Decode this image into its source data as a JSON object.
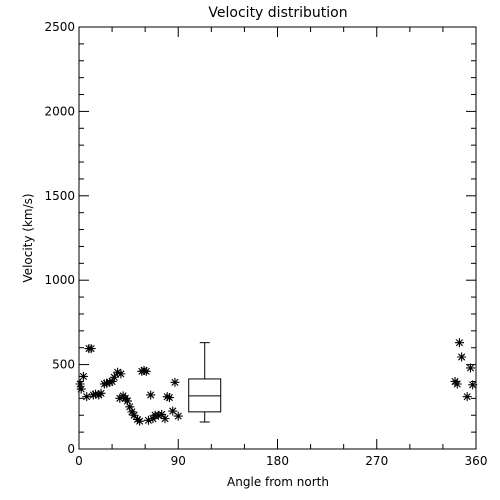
{
  "chart_data": {
    "type": "scatter",
    "title": "Velocity distribution",
    "xlabel": "Angle from north",
    "ylabel": "Velocity (km/s)",
    "xlim": [
      0,
      360
    ],
    "ylim": [
      0,
      2500
    ],
    "xticks": [
      0,
      90,
      180,
      270,
      360
    ],
    "yticks": [
      0,
      500,
      1000,
      1500,
      2000,
      2500
    ],
    "grid": false,
    "marker": "asterisk",
    "points": [
      [
        1,
        385
      ],
      [
        2,
        355
      ],
      [
        4,
        430
      ],
      [
        7,
        310
      ],
      [
        9,
        595
      ],
      [
        11,
        595
      ],
      [
        13,
        320
      ],
      [
        15,
        325
      ],
      [
        18,
        320
      ],
      [
        20,
        330
      ],
      [
        23,
        385
      ],
      [
        25,
        390
      ],
      [
        28,
        395
      ],
      [
        30,
        400
      ],
      [
        32,
        425
      ],
      [
        35,
        455
      ],
      [
        37,
        300
      ],
      [
        38,
        445
      ],
      [
        40,
        315
      ],
      [
        42,
        300
      ],
      [
        44,
        285
      ],
      [
        46,
        250
      ],
      [
        48,
        220
      ],
      [
        50,
        200
      ],
      [
        53,
        175
      ],
      [
        55,
        165
      ],
      [
        57,
        460
      ],
      [
        59,
        465
      ],
      [
        61,
        460
      ],
      [
        63,
        170
      ],
      [
        65,
        320
      ],
      [
        67,
        180
      ],
      [
        69,
        200
      ],
      [
        72,
        200
      ],
      [
        75,
        205
      ],
      [
        78,
        180
      ],
      [
        80,
        310
      ],
      [
        82,
        305
      ],
      [
        85,
        225
      ],
      [
        87,
        395
      ],
      [
        90,
        195
      ],
      [
        341,
        400
      ],
      [
        343,
        385
      ],
      [
        345,
        630
      ],
      [
        347,
        545
      ],
      [
        352,
        310
      ],
      [
        355,
        480
      ],
      [
        357,
        380
      ]
    ],
    "boxplot": {
      "x": 114,
      "min": 160,
      "q1": 220,
      "median": 315,
      "q3": 415,
      "max": 630
    }
  }
}
